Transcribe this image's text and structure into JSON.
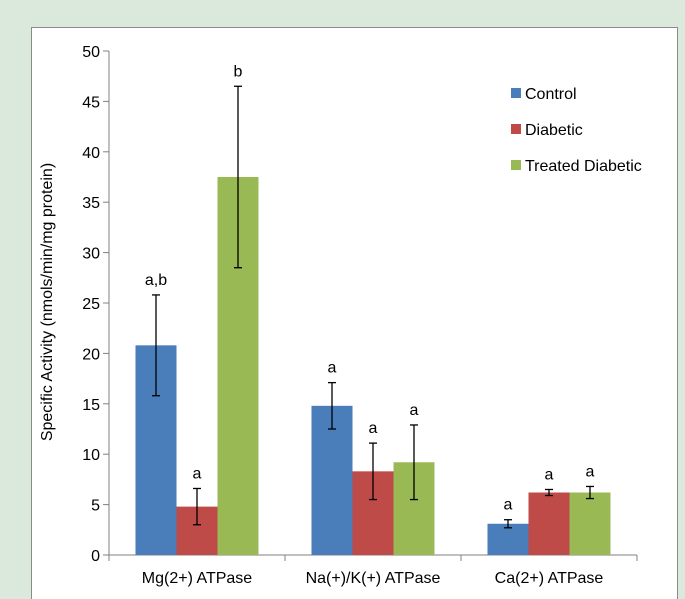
{
  "chart_data": {
    "type": "bar",
    "title": "",
    "xlabel": "",
    "ylabel": "Specific Activity (nmols/min/mg protein)",
    "ylim": [
      0,
      50
    ],
    "yticks": [
      0,
      5,
      10,
      15,
      20,
      25,
      30,
      35,
      40,
      45,
      50
    ],
    "grid": false,
    "legend_position": "top-right",
    "categories": [
      "Mg(2+) ATPase",
      "Na(+)/K(+) ATPase",
      "Ca(2+) ATPase"
    ],
    "series": [
      {
        "name": "Control",
        "color": "#4a7ebb",
        "values": [
          20.8,
          14.8,
          3.1
        ],
        "errors": [
          5.0,
          2.3,
          0.4
        ],
        "labels": [
          "a,b",
          "a",
          "a"
        ]
      },
      {
        "name": "Diabetic",
        "color": "#be4b48",
        "values": [
          4.8,
          8.3,
          6.2
        ],
        "errors": [
          1.8,
          2.8,
          0.3
        ],
        "labels": [
          "a",
          "a",
          "a"
        ]
      },
      {
        "name": "Treated Diabetic",
        "color": "#98b954",
        "values": [
          37.5,
          9.2,
          6.2
        ],
        "errors": [
          9.0,
          3.7,
          0.6
        ],
        "labels": [
          "b",
          "a",
          "a"
        ]
      }
    ]
  }
}
